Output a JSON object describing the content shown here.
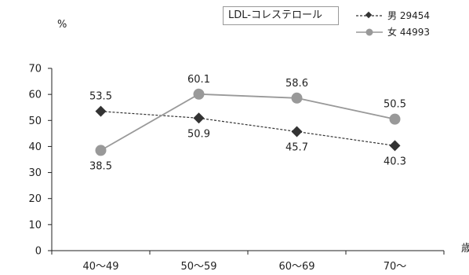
{
  "unit_label": "%",
  "x_unit_label": "歳",
  "legend_title": "LDL-コレステロール",
  "legend": [
    {
      "label": "男 29454",
      "marker": "diamond",
      "dash": "dashed",
      "color": "#333333"
    },
    {
      "label": "女 44993",
      "marker": "circle",
      "dash": "solid",
      "color": "#999999"
    }
  ],
  "chart_data": {
    "type": "line",
    "title": "LDL-コレステロール",
    "categories": [
      "40～49",
      "50～59",
      "60～69",
      "70～"
    ],
    "ylim": [
      0,
      70
    ],
    "yticks": [
      0,
      10,
      20,
      30,
      40,
      50,
      60,
      70
    ],
    "ylabel": "%",
    "xlabel": "歳",
    "grid": false,
    "legend_position": "top-right",
    "series": [
      {
        "name": "男 29454",
        "values": [
          53.5,
          50.9,
          45.7,
          40.3
        ],
        "labels": [
          "53.5",
          "50.9",
          "45.7",
          "40.3"
        ],
        "color": "#333333",
        "marker": "diamond",
        "dash": "dashed"
      },
      {
        "name": "女 44993",
        "values": [
          38.5,
          60.1,
          58.6,
          50.5
        ],
        "labels": [
          "38.5",
          "60.1",
          "58.6",
          "50.5"
        ],
        "color": "#999999",
        "marker": "circle",
        "dash": "solid"
      }
    ]
  }
}
